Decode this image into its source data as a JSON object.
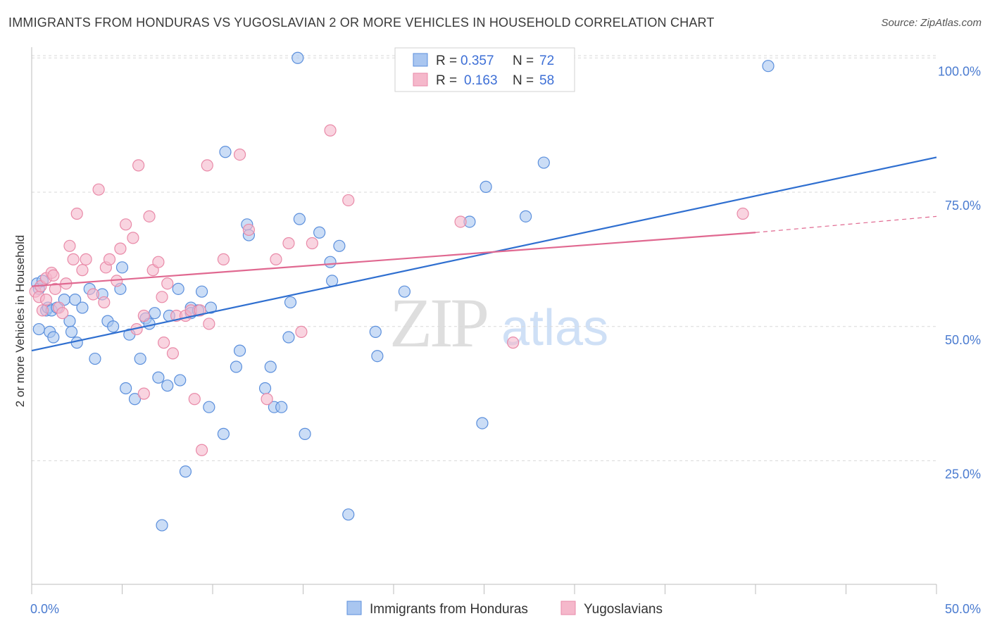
{
  "title": "IMMIGRANTS FROM HONDURAS VS YUGOSLAVIAN 2 OR MORE VEHICLES IN HOUSEHOLD CORRELATION CHART",
  "source": "Source: ZipAtlas.com",
  "watermark": {
    "zip": "ZIP",
    "atlas": "atlas"
  },
  "colors": {
    "blue_fill": "#a9c6f0",
    "blue_stroke": "#5b8fdc",
    "blue_line": "#2f6fd0",
    "pink_fill": "#f5b8cb",
    "pink_stroke": "#e98aa8",
    "pink_line": "#e06890",
    "tick_text": "#4a7bd0",
    "grid": "#d9d9d9"
  },
  "legend": {
    "rows": [
      {
        "r_label": "R =",
        "r_value": "0.357",
        "n_label": "N =",
        "n_value": "72"
      },
      {
        "r_label": "R =",
        "r_value": "0.163",
        "n_label": "N =",
        "n_value": "58"
      }
    ]
  },
  "chart_data": {
    "type": "scatter",
    "title": "IMMIGRANTS FROM HONDURAS VS YUGOSLAVIAN 2 OR MORE VEHICLES IN HOUSEHOLD CORRELATION CHART",
    "xlabel": "",
    "ylabel": "2 or more Vehicles in Household",
    "xlim": [
      0,
      50
    ],
    "ylim": [
      2,
      102
    ],
    "x_tick_labels": [
      "0.0%",
      "50.0%"
    ],
    "y_ticks": [
      25,
      50,
      75,
      100
    ],
    "y_tick_labels": [
      "25.0%",
      "50.0%",
      "75.0%",
      "100.0%"
    ],
    "grid": true,
    "legend_position": "top-center",
    "series": [
      {
        "name": "Immigrants from Honduras",
        "r": 0.357,
        "n": 72,
        "trend": {
          "x0": 0,
          "y0": 45.5,
          "x1": 50,
          "y1": 81.5
        },
        "points": [
          [
            0.3,
            58
          ],
          [
            0.4,
            57
          ],
          [
            0.4,
            49.5
          ],
          [
            0.8,
            53
          ],
          [
            0.9,
            53.5
          ],
          [
            1.0,
            49
          ],
          [
            1.1,
            53
          ],
          [
            1.2,
            48
          ],
          [
            1.4,
            53.5
          ],
          [
            1.8,
            55
          ],
          [
            2.1,
            51
          ],
          [
            2.2,
            49
          ],
          [
            2.4,
            55
          ],
          [
            2.5,
            47
          ],
          [
            2.8,
            53.5
          ],
          [
            3.2,
            57
          ],
          [
            3.5,
            44
          ],
          [
            3.9,
            56
          ],
          [
            4.2,
            51
          ],
          [
            4.5,
            50
          ],
          [
            4.9,
            57
          ],
          [
            5.0,
            61
          ],
          [
            5.2,
            38.5
          ],
          [
            5.4,
            48.5
          ],
          [
            5.7,
            36.5
          ],
          [
            6.0,
            44
          ],
          [
            6.3,
            51.5
          ],
          [
            6.5,
            50.5
          ],
          [
            6.8,
            52.5
          ],
          [
            7.0,
            40.5
          ],
          [
            7.2,
            13
          ],
          [
            7.5,
            39
          ],
          [
            7.6,
            52
          ],
          [
            8.1,
            57
          ],
          [
            8.2,
            40
          ],
          [
            8.5,
            23
          ],
          [
            8.8,
            53.5
          ],
          [
            8.8,
            52.5
          ],
          [
            9.2,
            53
          ],
          [
            9.4,
            56.5
          ],
          [
            9.8,
            35
          ],
          [
            9.9,
            53.5
          ],
          [
            10.6,
            30
          ],
          [
            10.7,
            82.5
          ],
          [
            11.3,
            42.5
          ],
          [
            11.5,
            45.5
          ],
          [
            11.9,
            69
          ],
          [
            12.0,
            67
          ],
          [
            12.9,
            38.5
          ],
          [
            13.2,
            42.5
          ],
          [
            13.4,
            35
          ],
          [
            13.8,
            35
          ],
          [
            14.2,
            48
          ],
          [
            14.3,
            54.5
          ],
          [
            14.7,
            100
          ],
          [
            14.8,
            70
          ],
          [
            15.1,
            30
          ],
          [
            15.9,
            67.5
          ],
          [
            16.5,
            62
          ],
          [
            16.6,
            58.5
          ],
          [
            17.0,
            65
          ],
          [
            17.5,
            15
          ],
          [
            19.0,
            49
          ],
          [
            19.1,
            44.5
          ],
          [
            20.6,
            56.5
          ],
          [
            24.2,
            69.5
          ],
          [
            24.9,
            32
          ],
          [
            25.1,
            76
          ],
          [
            27.3,
            70.5
          ],
          [
            28.3,
            80.5
          ],
          [
            40.7,
            98.5
          ],
          [
            0.6,
            58.5
          ]
        ]
      },
      {
        "name": "Yugoslavians",
        "r": 0.163,
        "n": 58,
        "trend": {
          "x0": 0,
          "y0": 57.5,
          "x1": 40,
          "y1": 67.5
        },
        "trend_extension": {
          "x0": 40,
          "y0": 67.5,
          "x1": 50,
          "y1": 70.5
        },
        "points": [
          [
            0.2,
            56.5
          ],
          [
            0.4,
            55.5
          ],
          [
            0.5,
            57.5
          ],
          [
            0.6,
            53
          ],
          [
            0.8,
            59
          ],
          [
            0.8,
            55
          ],
          [
            1.1,
            60
          ],
          [
            1.2,
            59.5
          ],
          [
            1.3,
            57
          ],
          [
            1.5,
            53.5
          ],
          [
            1.7,
            52.5
          ],
          [
            1.9,
            58
          ],
          [
            2.1,
            65
          ],
          [
            2.3,
            62.5
          ],
          [
            2.5,
            71
          ],
          [
            2.8,
            60.5
          ],
          [
            3.0,
            62.5
          ],
          [
            3.4,
            56
          ],
          [
            3.7,
            75.5
          ],
          [
            4.0,
            54.5
          ],
          [
            4.1,
            61
          ],
          [
            4.3,
            62.5
          ],
          [
            4.7,
            58.5
          ],
          [
            4.9,
            64.5
          ],
          [
            5.2,
            69
          ],
          [
            5.6,
            66.5
          ],
          [
            5.8,
            49.5
          ],
          [
            5.9,
            80
          ],
          [
            6.2,
            37.5
          ],
          [
            6.2,
            52
          ],
          [
            6.5,
            70.5
          ],
          [
            6.7,
            60.5
          ],
          [
            7.0,
            62
          ],
          [
            7.2,
            55.5
          ],
          [
            7.3,
            47
          ],
          [
            7.5,
            58
          ],
          [
            7.8,
            45
          ],
          [
            8.0,
            52
          ],
          [
            8.5,
            52
          ],
          [
            8.8,
            53
          ],
          [
            9.0,
            36.5
          ],
          [
            9.3,
            53
          ],
          [
            9.4,
            27
          ],
          [
            9.7,
            80
          ],
          [
            9.8,
            50.5
          ],
          [
            10.6,
            62.5
          ],
          [
            11.5,
            82
          ],
          [
            12.0,
            68
          ],
          [
            13.0,
            36.5
          ],
          [
            13.5,
            62.5
          ],
          [
            14.2,
            65.5
          ],
          [
            14.9,
            49
          ],
          [
            15.5,
            65.5
          ],
          [
            16.5,
            86.5
          ],
          [
            17.5,
            73.5
          ],
          [
            23.7,
            69.5
          ],
          [
            26.6,
            47
          ],
          [
            39.3,
            71
          ]
        ]
      }
    ]
  }
}
